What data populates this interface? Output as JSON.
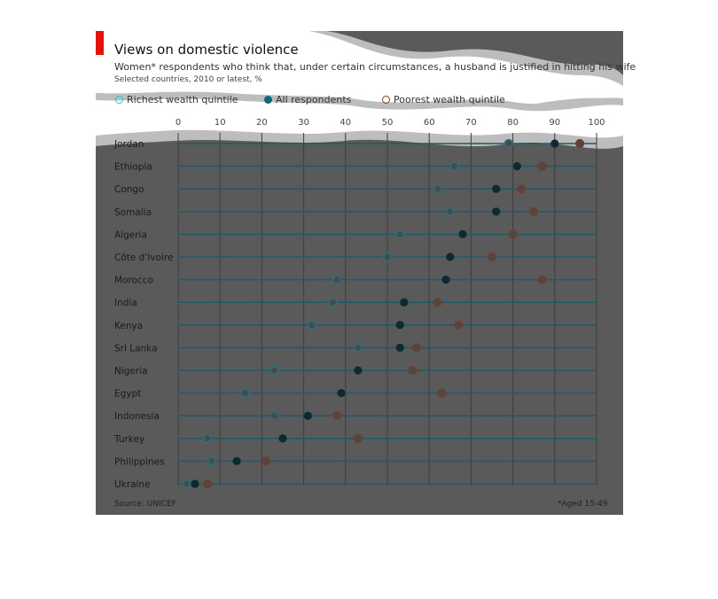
{
  "header": {
    "title": "Views on domestic violence",
    "subtitle": "Women* respondents who think that, under certain circumstances, a husband is justified in hitting his wife",
    "note": "Selected countries, 2010 or latest, %"
  },
  "legend": {
    "richest": "Richest wealth quintile",
    "all": "All respondents",
    "poorest": "Poorest wealth quintile"
  },
  "footer": {
    "source": "Source: UNICEF",
    "footnote": "*Aged 15-49"
  },
  "colors": {
    "richest": "#2a6f80",
    "all": "#0b2a33",
    "poorest": "#7a3a25",
    "line": "#1f5a6a",
    "card": "#5a5a5a",
    "accent": "#e3120b"
  },
  "chart_data": {
    "type": "dot-range",
    "title": "Views on domestic violence",
    "xlim": [
      0,
      100
    ],
    "xticks": [
      0,
      10,
      20,
      30,
      40,
      50,
      60,
      70,
      80,
      90,
      100
    ],
    "xtick_labels": [
      "0",
      "10",
      "20",
      "30",
      "40",
      "50",
      "60",
      "70",
      "80",
      "90",
      "100"
    ],
    "grid": true,
    "legend_position": "top",
    "categories": [
      "Jordan",
      "Ethiopia",
      "Congo",
      "Somalia",
      "Algeria",
      "Côte d'Ivoire",
      "Morocco",
      "India",
      "Kenya",
      "Sri Lanka",
      "Nigeria",
      "Egypt",
      "Indonesia",
      "Turkey",
      "Philippines",
      "Ukraine"
    ],
    "series": [
      {
        "name": "Richest wealth quintile",
        "values": [
          79,
          66,
          62,
          65,
          53,
          50,
          38,
          37,
          32,
          43,
          23,
          16,
          23,
          7,
          8,
          2
        ]
      },
      {
        "name": "All respondents",
        "values": [
          90,
          81,
          76,
          76,
          68,
          65,
          64,
          54,
          53,
          53,
          43,
          39,
          31,
          25,
          14,
          4
        ]
      },
      {
        "name": "Poorest wealth quintile",
        "values": [
          96,
          87,
          82,
          85,
          80,
          75,
          87,
          62,
          67,
          57,
          56,
          63,
          38,
          43,
          21,
          7
        ]
      }
    ]
  }
}
